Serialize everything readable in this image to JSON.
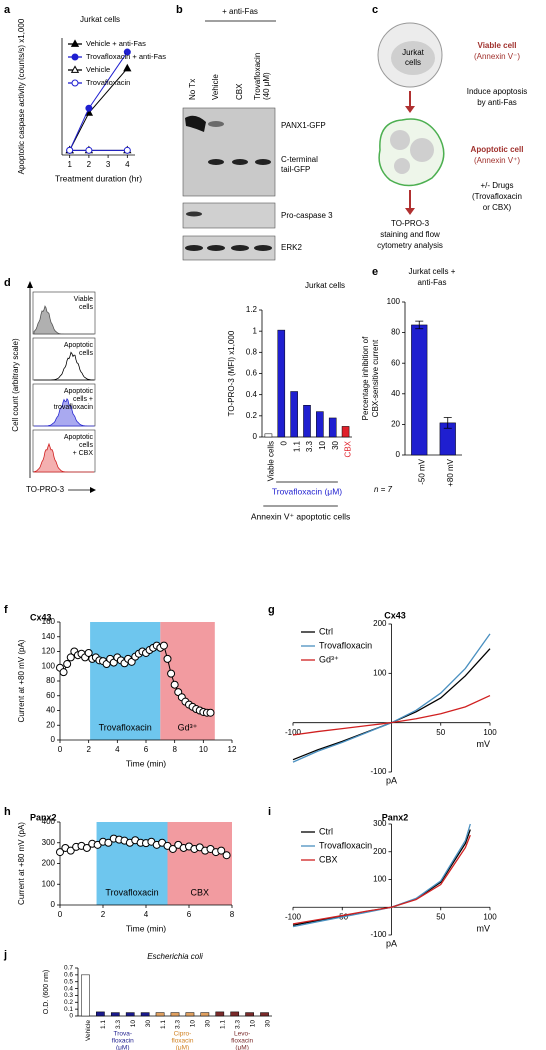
{
  "chart_data": [
    {
      "panel": "a",
      "type": "line",
      "title": "Jurkat cells",
      "x_label": "Treatment duration (hr)",
      "y_label": "Apoptotic caspase activity (counts/s) x1,000",
      "x": [
        1,
        2,
        4
      ],
      "xlim": [
        0.6,
        4.4
      ],
      "xticks": [
        1,
        2,
        3,
        4
      ],
      "ylim": [
        0,
        25
      ],
      "legend": "upper left",
      "series": [
        {
          "name": "Vehicle + anti-Fas",
          "color": "#000000",
          "marker": "triangle",
          "values": [
            1,
            9,
            18.5
          ]
        },
        {
          "name": "Trovafloxacin + anti-Fas",
          "color": "#1f1fd0",
          "marker": "circle",
          "values": [
            1,
            10,
            22
          ]
        },
        {
          "name": "Vehicle",
          "color": "#000000",
          "marker": "triangle-open",
          "values": [
            1,
            1,
            1
          ]
        },
        {
          "name": "Trovafloxacin",
          "color": "#1f1fd0",
          "marker": "circle-open",
          "values": [
            1,
            1,
            1
          ]
        }
      ]
    },
    {
      "type": "bar",
      "title": "Jurkat cells",
      "y_label": "TO-PRO-3 (MFI) x1,000",
      "categories": [
        "Viable cells",
        "0",
        "1.1",
        "3.3",
        "10",
        "30",
        "CBX"
      ],
      "values": [
        0.03,
        1.01,
        0.43,
        0.3,
        0.24,
        0.18,
        0.1
      ],
      "colors": [
        "#ffffff",
        "#1f1fd0",
        "#1f1fd0",
        "#1f1fd0",
        "#1f1fd0",
        "#1f1fd0",
        "#e0202a"
      ],
      "label_colors": [
        "#000000",
        "#000000",
        "#000000",
        "#000000",
        "#000000",
        "#000000",
        "#e0202a"
      ],
      "ylim": [
        0,
        1.2
      ],
      "yticks": [
        0,
        0.2,
        0.4,
        0.6,
        0.8,
        1,
        1.2
      ],
      "groups": [
        {
          "label": [
            "Trovafloxacin (μM)"
          ],
          "color": "#1f1fd0"
        }
      ],
      "footer": "Annexin V⁺ apoptotic cells"
    },
    {
      "panel": "e",
      "type": "bar",
      "title": [
        "Jurkat cells +",
        "anti-Fas"
      ],
      "y_label": [
        "Percentage inhibition of",
        "CBX-sensitive current"
      ],
      "categories": [
        "-50 mV",
        "+80 mV"
      ],
      "values": [
        85,
        21
      ],
      "errors": [
        2.5,
        3.5
      ],
      "color": "#1f1fd0",
      "ylim": [
        0,
        100
      ],
      "yticks": [
        0,
        20,
        40,
        60,
        80,
        100
      ],
      "annotation": "n = 7"
    },
    {
      "panel": "f",
      "type": "line",
      "title": "Cx43",
      "x_label": "Time (min)",
      "y_label": "Current at +80 mV (pA)",
      "x": [
        0,
        0.25,
        0.5,
        0.75,
        1,
        1.25,
        1.5,
        1.75,
        2,
        2.25,
        2.5,
        2.75,
        3,
        3.25,
        3.5,
        3.75,
        4,
        4.25,
        4.5,
        4.75,
        5,
        5.25,
        5.5,
        5.75,
        6,
        6.25,
        6.5,
        6.75,
        7,
        7.25,
        7.5,
        7.75,
        8,
        8.25,
        8.5,
        8.75,
        9,
        9.25,
        9.5,
        9.75,
        10,
        10.25,
        10.5
      ],
      "xlim": [
        0,
        12
      ],
      "xticks": [
        0,
        2,
        4,
        6,
        8,
        10,
        12
      ],
      "ylim": [
        0,
        160
      ],
      "yticks": [
        0,
        20,
        40,
        60,
        80,
        100,
        120,
        140,
        160
      ],
      "regions": [
        {
          "label": "Trovafloxacin",
          "start": 2.1,
          "end": 7,
          "color": "#6ec6ee"
        },
        {
          "label": "Gd³⁺",
          "start": 7,
          "end": 10.8,
          "color": "#f29ba0"
        }
      ],
      "series": [
        {
          "color": "#000000",
          "marker": "circle-open",
          "values": [
            98,
            92,
            103,
            112,
            120,
            115,
            117,
            112,
            118,
            110,
            112,
            108,
            107,
            103,
            110,
            105,
            112,
            108,
            104,
            110,
            106,
            113,
            117,
            120,
            118,
            122,
            125,
            128,
            125,
            128,
            110,
            90,
            75,
            65,
            58,
            52,
            48,
            45,
            42,
            40,
            38,
            37,
            37
          ]
        }
      ]
    },
    {
      "panel": "g",
      "type": "line",
      "title": "Cx43",
      "x_unit": "mV",
      "y_unit": "pA",
      "axes_cross_origin": true,
      "x": [
        -100,
        -75,
        -50,
        -25,
        0,
        25,
        50,
        75,
        100
      ],
      "xlim": [
        -100,
        100
      ],
      "xticks": [
        -100,
        50,
        100
      ],
      "ylim": [
        -100,
        200
      ],
      "yticks": [
        -100,
        100,
        200
      ],
      "legend": "upper left",
      "series": [
        {
          "name": "Ctrl",
          "color": "#000000",
          "values": [
            -75,
            -55,
            -38,
            -19,
            0,
            22,
            50,
            95,
            150
          ]
        },
        {
          "name": "Trovafloxacin",
          "color": "#4a90c0",
          "values": [
            -80,
            -58,
            -40,
            -20,
            0,
            25,
            60,
            110,
            180
          ]
        },
        {
          "name": "Gd³⁺",
          "color": "#d02020",
          "values": [
            -25,
            -18,
            -12,
            -6,
            0,
            8,
            18,
            32,
            55
          ]
        }
      ]
    },
    {
      "panel": "h",
      "type": "line",
      "title": "Panx2",
      "x_label": "Time (min)",
      "y_label": "Current at +80 mV (pA)",
      "x": [
        0,
        0.25,
        0.5,
        0.75,
        1,
        1.25,
        1.5,
        1.75,
        2,
        2.25,
        2.5,
        2.75,
        3,
        3.25,
        3.5,
        3.75,
        4,
        4.25,
        4.5,
        4.75,
        5,
        5.25,
        5.5,
        5.75,
        6,
        6.25,
        6.5,
        6.75,
        7,
        7.25,
        7.5,
        7.75
      ],
      "xlim": [
        0,
        8
      ],
      "xticks": [
        0,
        2,
        4,
        6,
        8
      ],
      "ylim": [
        0,
        400
      ],
      "yticks": [
        0,
        100,
        200,
        300,
        400
      ],
      "regions": [
        {
          "label": "Trovafloxacin",
          "start": 1.7,
          "end": 5,
          "color": "#6ec6ee"
        },
        {
          "label": "CBX",
          "start": 5,
          "end": 8,
          "color": "#f29ba0"
        }
      ],
      "series": [
        {
          "color": "#000000",
          "marker": "circle-open",
          "values": [
            255,
            275,
            262,
            280,
            285,
            275,
            295,
            290,
            305,
            300,
            320,
            315,
            310,
            300,
            312,
            300,
            298,
            305,
            290,
            300,
            285,
            270,
            290,
            275,
            282,
            270,
            278,
            262,
            270,
            255,
            262,
            240
          ]
        }
      ]
    },
    {
      "panel": "i",
      "type": "line",
      "title": "Panx2",
      "x_unit": "mV",
      "y_unit": "pA",
      "axes_cross_origin": true,
      "x": [
        -100,
        -75,
        -50,
        -25,
        0,
        25,
        50,
        75,
        80
      ],
      "xlim": [
        -100,
        100
      ],
      "xticks": [
        -100,
        -50,
        50,
        100
      ],
      "ylim": [
        -100,
        300
      ],
      "yticks": [
        -100,
        100,
        200,
        300
      ],
      "legend": "upper left",
      "series": [
        {
          "name": "Ctrl",
          "color": "#000000",
          "values": [
            -65,
            -48,
            -32,
            -15,
            0,
            30,
            90,
            230,
            280
          ]
        },
        {
          "name": "Trovafloxacin",
          "color": "#4a90c0",
          "values": [
            -70,
            -52,
            -35,
            -18,
            0,
            32,
            95,
            240,
            300
          ]
        },
        {
          "name": "CBX",
          "color": "#d02020",
          "values": [
            -60,
            -45,
            -30,
            -14,
            0,
            28,
            82,
            215,
            260
          ]
        }
      ]
    },
    {
      "panel": "j",
      "type": "bar",
      "title": "Escherichia coli",
      "title_italic": true,
      "y_label": "O.D. (600 nm)",
      "categories": [
        "Vehicle",
        "1.1",
        "3.3",
        "10",
        "30",
        "1.1",
        "3.3",
        "10",
        "30",
        "1.1",
        "3.3",
        "10",
        "30"
      ],
      "values": [
        0.6,
        0.06,
        0.05,
        0.05,
        0.05,
        0.05,
        0.05,
        0.05,
        0.05,
        0.06,
        0.06,
        0.05,
        0.05
      ],
      "colors": [
        "#ffffff",
        "#1a1a8c",
        "#1a1a8c",
        "#1a1a8c",
        "#1a1a8c",
        "#e0a060",
        "#e0a060",
        "#e0a060",
        "#e0a060",
        "#7a2a2a",
        "#7a2a2a",
        "#7a2a2a",
        "#7a2a2a"
      ],
      "ylim": [
        0,
        0.7
      ],
      "yticks": [
        0,
        0.1,
        0.2,
        0.3,
        0.4,
        0.5,
        0.6,
        0.7
      ],
      "groups": [
        {
          "label": [
            "Trova-",
            "floxacin",
            "(μM)"
          ],
          "color": "#1a1a8c"
        },
        {
          "label": [
            "Cipro-",
            "floxacin",
            "(μM)"
          ],
          "color": "#d08020"
        },
        {
          "label": [
            "Levo-",
            "floxacin",
            "(μM)"
          ],
          "color": "#7a2a2a"
        }
      ]
    }
  ],
  "blot": {
    "panel": "b",
    "header": "+ anti-Fas",
    "lanes": [
      [
        "No Tx"
      ],
      [
        "Vehicle"
      ],
      [
        "CBX"
      ],
      [
        "Trovafloxacin",
        "(40 μM)"
      ]
    ],
    "bands": [
      [
        "PANX1-GFP"
      ],
      [
        "C-terminal",
        "tail-GFP"
      ],
      [
        "Pro-caspase 3"
      ],
      [
        "ERK2"
      ]
    ]
  },
  "diagram": {
    "panel": "c",
    "cell": [
      "Jurkat",
      "cells"
    ],
    "viable_title": "Viable cell",
    "viable_note": "(Annexin V⁻)",
    "step": [
      "Induce apoptosis",
      "by anti-Fas"
    ],
    "apoptotic_title": "Apoptotic cell",
    "apoptotic_note": "(Annexin V⁺)",
    "drugs": [
      "+/- Drugs",
      "(Trovafloxacin",
      "or CBX)"
    ],
    "analysis": [
      "TO-PRO-3",
      "staining and flow",
      "cytometry analysis"
    ]
  },
  "histograms": {
    "panel": "d",
    "y_label": "Cell count (arbitrary scale)",
    "x_label": "TO-PRO-3",
    "rows": [
      [
        "Viable",
        "cells"
      ],
      [
        "Apoptotic",
        "cells"
      ],
      [
        "Apoptotic",
        "cells +",
        "trovafloxacin"
      ],
      [
        "Apoptotic",
        "cells",
        "+ CBX"
      ]
    ]
  }
}
